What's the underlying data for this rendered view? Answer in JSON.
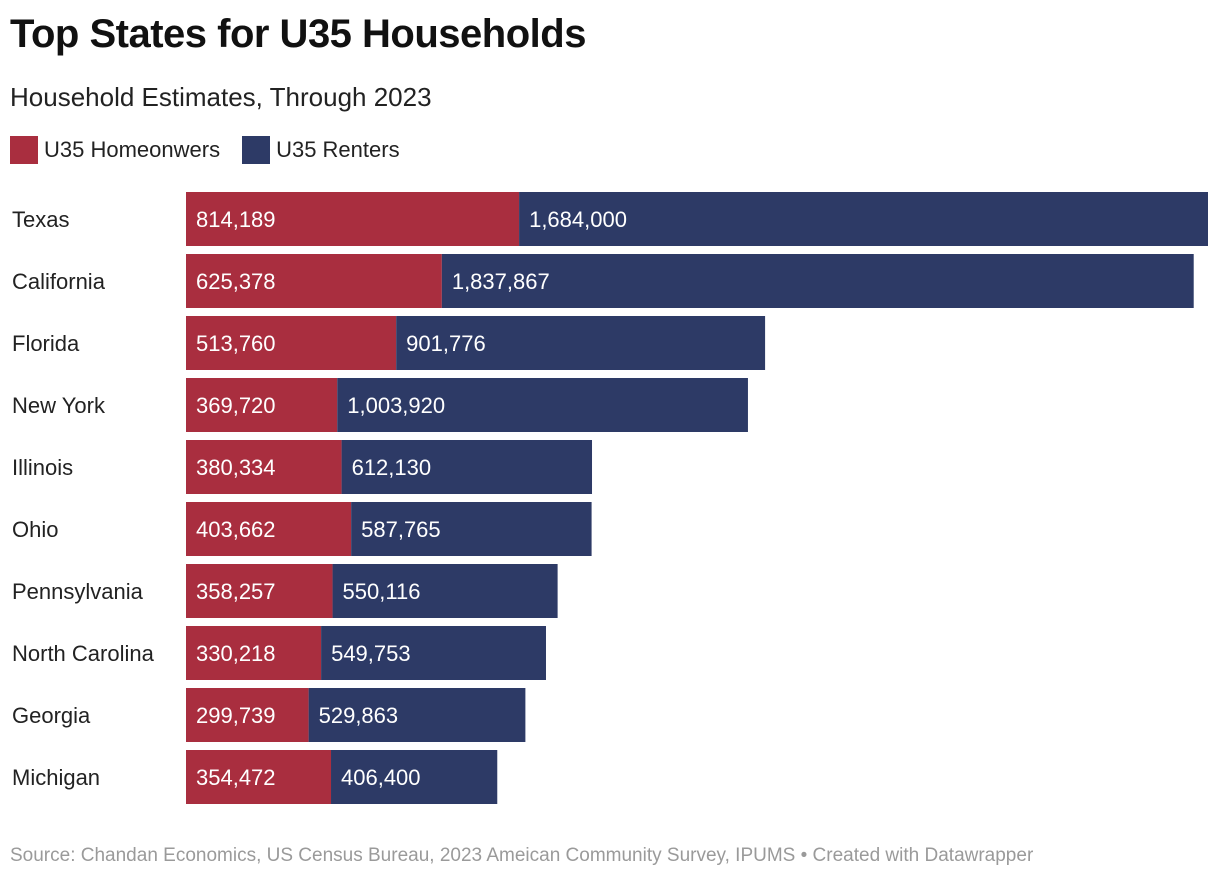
{
  "chart_data": {
    "type": "bar",
    "orientation": "horizontal",
    "stacked": true,
    "title": "Top States for U35 Households",
    "subtitle": "Household Estimates, Through 2023",
    "categories": [
      "Texas",
      "California",
      "Florida",
      "New York",
      "Illinois",
      "Ohio",
      "Pennsylvania",
      "North Carolina",
      "Georgia",
      "Michigan"
    ],
    "series": [
      {
        "name": "U35 Homeonwers",
        "color": "#a92e3f",
        "values": [
          814189,
          625378,
          513760,
          369720,
          380334,
          403662,
          358257,
          330218,
          299739,
          354472
        ],
        "labels": [
          "814,189",
          "625,378",
          "513,760",
          "369,720",
          "380,334",
          "403,662",
          "358,257",
          "330,218",
          "299,739",
          "354,472"
        ]
      },
      {
        "name": "U35 Renters",
        "color": "#2d3a66",
        "values": [
          1684000,
          1837867,
          901776,
          1003920,
          612130,
          587765,
          550116,
          549753,
          529863,
          406400
        ],
        "labels": [
          "1,684,000",
          "1,837,867",
          "901,776",
          "1,003,920",
          "612,130",
          "587,765",
          "550,116",
          "549,753",
          "529,863",
          "406,400"
        ]
      }
    ],
    "legend_position": "top-left",
    "grid": false,
    "xlim": [
      0,
      2498189
    ]
  },
  "source": "Source: Chandan Economics, US Census Bureau, 2023 Ameican Community Survey, IPUMS • Created with Datawrapper"
}
